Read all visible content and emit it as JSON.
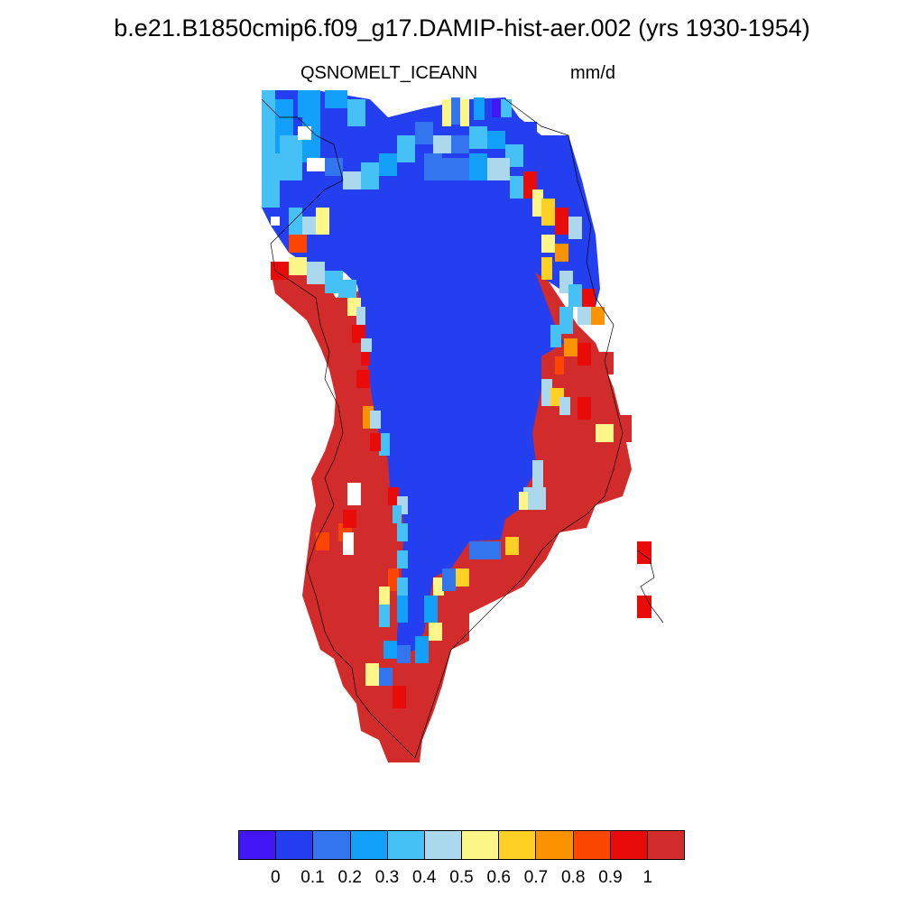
{
  "title": "b.e21.B1850cmip6.f09_g17.DAMIP-hist-aer.002 (yrs 1930-1954)",
  "variable": "QSNOMELT_ICE",
  "season": "ANN",
  "units": "mm/d",
  "colorbar": {
    "colors": [
      "#4216f5",
      "#233ff0",
      "#3375ee",
      "#12a0fb",
      "#45c1f5",
      "#acd8ee",
      "#fff68a",
      "#fdd023",
      "#fb9200",
      "#fb4500",
      "#e90a0a",
      "#d22b2b"
    ],
    "labels": [
      "0",
      "0.1",
      "0.2",
      "0.3",
      "0.4",
      "0.5",
      "0.6",
      "0.7",
      "0.8",
      "0.9",
      "1"
    ]
  }
}
